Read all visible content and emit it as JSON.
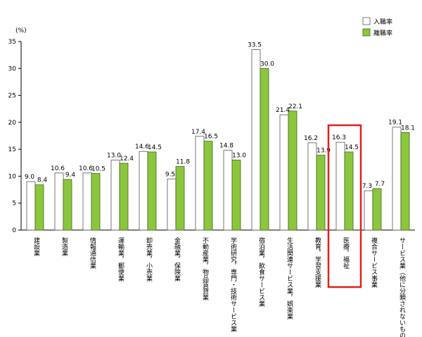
{
  "chart_data": {
    "type": "bar",
    "unit_label": "(%)",
    "ylim": [
      0,
      35
    ],
    "yticks": [
      0,
      5,
      10,
      15,
      20,
      25,
      30,
      35
    ],
    "grid": false,
    "legend_position": "top-right",
    "categories": [
      "建設業",
      "製造業",
      "情報通信業",
      "運輸業，郵便業",
      "卸売業，小売業",
      "金融業，保険業",
      "不動産業，物品賃貸業",
      "学術研究，専門・技術サービス業",
      "宿泊業，飲食サービス業",
      "生活関連サービス業，娯楽業",
      "教育，学習支援業",
      "医療，福祉",
      "複合サービス事業",
      "サービス業（他に分類されないもの）"
    ],
    "series": [
      {
        "name": "入職率",
        "color": "#ffffff",
        "values": [
          9.0,
          10.6,
          10.6,
          13.0,
          14.6,
          9.5,
          17.4,
          14.8,
          33.5,
          21.4,
          16.2,
          16.3,
          7.3,
          19.1
        ],
        "labels": [
          "9.0",
          "10.6",
          "10.6",
          "13.0",
          "14.6",
          "9.5",
          "17.4",
          "14.8",
          "33.5",
          "21.4",
          "16.2",
          "16.3",
          "7.3",
          "19.1"
        ]
      },
      {
        "name": "離職率",
        "color": "#8cc63f",
        "values": [
          8.4,
          9.4,
          10.5,
          12.4,
          14.5,
          11.8,
          16.5,
          13.0,
          30.0,
          22.1,
          13.9,
          14.5,
          7.7,
          18.1
        ],
        "labels": [
          "8.4",
          "9.4",
          "10.5",
          "12.4",
          "14.5",
          "11.8",
          "16.5",
          "13.0",
          "30.0",
          "22.1",
          "13.9",
          "14.5",
          "7.7",
          "18.1"
        ]
      }
    ],
    "highlight_category": "医療，福祉",
    "highlight_color": "#e0201b"
  }
}
